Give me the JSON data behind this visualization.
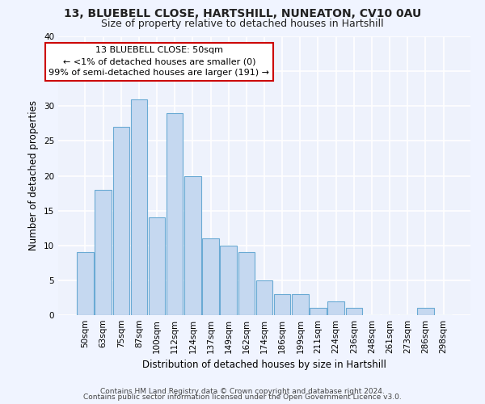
{
  "title_line1": "13, BLUEBELL CLOSE, HARTSHILL, NUNEATON, CV10 0AU",
  "title_line2": "Size of property relative to detached houses in Hartshill",
  "xlabel": "Distribution of detached houses by size in Hartshill",
  "ylabel": "Number of detached properties",
  "bar_labels": [
    "50sqm",
    "63sqm",
    "75sqm",
    "87sqm",
    "100sqm",
    "112sqm",
    "124sqm",
    "137sqm",
    "149sqm",
    "162sqm",
    "174sqm",
    "186sqm",
    "199sqm",
    "211sqm",
    "224sqm",
    "236sqm",
    "248sqm",
    "261sqm",
    "273sqm",
    "286sqm",
    "298sqm"
  ],
  "bar_values": [
    9,
    18,
    27,
    31,
    14,
    29,
    20,
    11,
    10,
    9,
    5,
    3,
    3,
    1,
    2,
    1,
    0,
    0,
    0,
    1,
    0
  ],
  "bar_color": "#c5d8f0",
  "bar_edge_color": "#6aaad4",
  "annotation_line1": "13 BLUEBELL CLOSE: 50sqm",
  "annotation_line2": "← <1% of detached houses are smaller (0)",
  "annotation_line3": "99% of semi-detached houses are larger (191) →",
  "annotation_box_color": "#ffffff",
  "annotation_box_edge": "#cc0000",
  "ylim": [
    0,
    40
  ],
  "yticks": [
    0,
    5,
    10,
    15,
    20,
    25,
    30,
    35,
    40
  ],
  "footer_line1": "Contains HM Land Registry data © Crown copyright and database right 2024.",
  "footer_line2": "Contains public sector information licensed under the Open Government Licence v3.0.",
  "bg_color": "#f0f4ff",
  "plot_bg_color": "#eef2fc",
  "grid_color": "#ffffff",
  "title_fontsize": 10,
  "subtitle_fontsize": 9,
  "axis_label_fontsize": 8.5,
  "tick_fontsize": 7.5,
  "annotation_fontsize": 8,
  "footer_fontsize": 6.5
}
